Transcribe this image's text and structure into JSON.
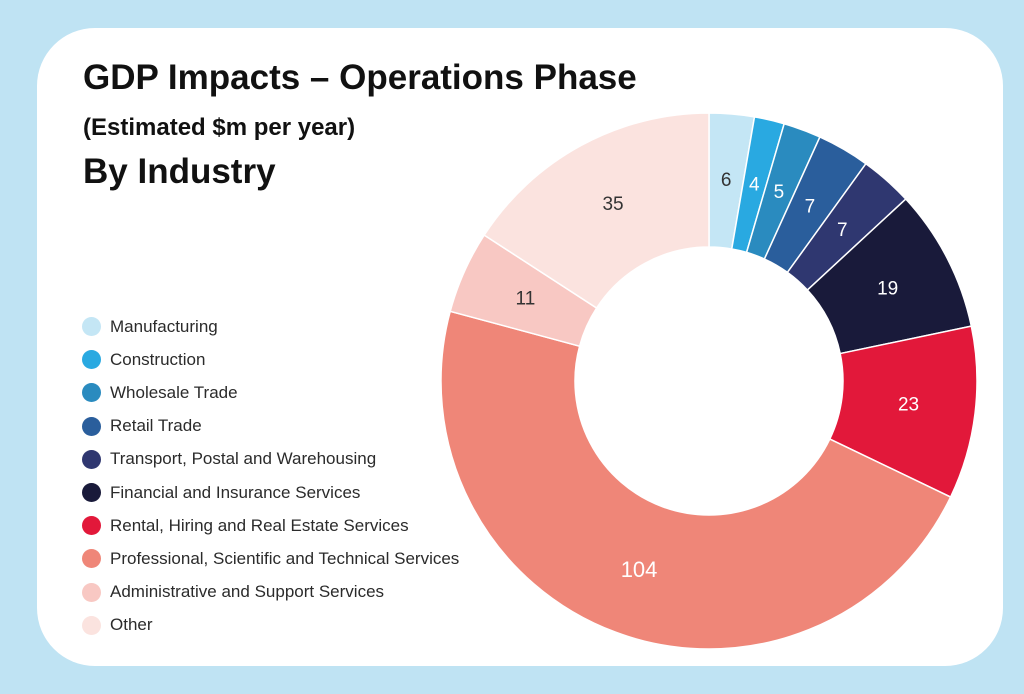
{
  "title": "GDP Impacts – Operations Phase",
  "subtitle": "(Estimated $m per year)",
  "heading": "By Industry",
  "chart_data": {
    "type": "pie",
    "variant": "donut",
    "title": "GDP Impacts – Operations Phase",
    "subtitle": "(Estimated $m per year)",
    "group_label": "By Industry",
    "legend_position": "left",
    "series": [
      {
        "name": "Manufacturing",
        "value": 6,
        "color": "#c4e6f5",
        "label_color": "#333333"
      },
      {
        "name": "Construction",
        "value": 4,
        "color": "#29a9e1",
        "label_color": "#ffffff"
      },
      {
        "name": "Wholesale Trade",
        "value": 5,
        "color": "#2a8bbf",
        "label_color": "#ffffff"
      },
      {
        "name": "Retail Trade",
        "value": 7,
        "color": "#2a5e9c",
        "label_color": "#ffffff"
      },
      {
        "name": "Transport, Postal and Warehousing",
        "value": 7,
        "color": "#2f3770",
        "label_color": "#ffffff"
      },
      {
        "name": "Financial and Insurance Services",
        "value": 19,
        "color": "#191a3a",
        "label_color": "#ffffff"
      },
      {
        "name": "Rental, Hiring and Real Estate Services",
        "value": 23,
        "color": "#e2183a",
        "label_color": "#ffffff"
      },
      {
        "name": "Professional, Scientific and Technical Services",
        "value": 104,
        "color": "#ef8678",
        "label_color": "#ffffff"
      },
      {
        "name": "Administrative and Support Services",
        "value": 11,
        "color": "#f8c8c3",
        "label_color": "#333333"
      },
      {
        "name": "Other",
        "value": 35,
        "color": "#fbe3df",
        "label_color": "#333333"
      }
    ]
  }
}
